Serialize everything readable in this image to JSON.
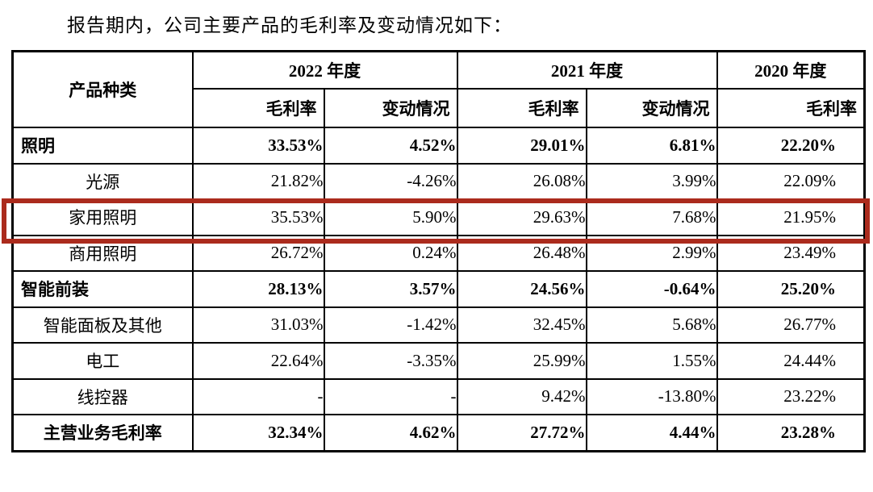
{
  "title": "报告期内，公司主要产品的毛利率及变动情况如下：",
  "table": {
    "highlight_color": "#AB2B1D",
    "header": {
      "product_col": "产品种类",
      "year_groups": [
        {
          "label": "2022 年度",
          "sub": [
            "毛利率",
            "变动情况"
          ]
        },
        {
          "label": "2021 年度",
          "sub": [
            "毛利率",
            "变动情况"
          ]
        },
        {
          "label": "2020 年度",
          "sub": [
            "毛利率"
          ]
        }
      ]
    },
    "rows": [
      {
        "name": "照明",
        "style": "category",
        "highlighted": false,
        "values": [
          "33.53%",
          "4.52%",
          "29.01%",
          "6.81%",
          "22.20%"
        ]
      },
      {
        "name": "光源",
        "style": "sub",
        "highlighted": false,
        "values": [
          "21.82%",
          "-4.26%",
          "26.08%",
          "3.99%",
          "22.09%"
        ]
      },
      {
        "name": "家用照明",
        "style": "sub",
        "highlighted": true,
        "values": [
          "35.53%",
          "5.90%",
          "29.63%",
          "7.68%",
          "21.95%"
        ]
      },
      {
        "name": "商用照明",
        "style": "sub",
        "highlighted": false,
        "values": [
          "26.72%",
          "0.24%",
          "26.48%",
          "2.99%",
          "23.49%"
        ]
      },
      {
        "name": "智能前装",
        "style": "category",
        "highlighted": false,
        "values": [
          "28.13%",
          "3.57%",
          "24.56%",
          "-0.64%",
          "25.20%"
        ]
      },
      {
        "name": "智能面板及其他",
        "style": "sub",
        "highlighted": false,
        "values": [
          "31.03%",
          "-1.42%",
          "32.45%",
          "5.68%",
          "26.77%"
        ]
      },
      {
        "name": "电工",
        "style": "sub",
        "highlighted": false,
        "values": [
          "22.64%",
          "-3.35%",
          "25.99%",
          "1.55%",
          "24.44%"
        ]
      },
      {
        "name": "线控器",
        "style": "sub",
        "highlighted": false,
        "values": [
          "-",
          "-",
          "9.42%",
          "-13.80%",
          "23.22%"
        ]
      },
      {
        "name": "主营业务毛利率",
        "style": "total",
        "highlighted": false,
        "values": [
          "32.34%",
          "4.62%",
          "27.72%",
          "4.44%",
          "23.28%"
        ]
      }
    ]
  }
}
